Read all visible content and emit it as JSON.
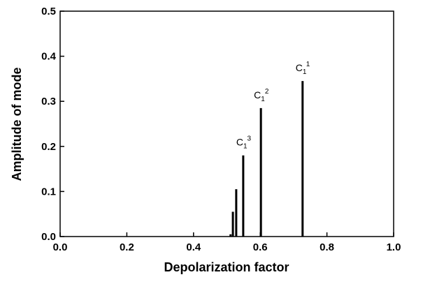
{
  "chart_data": {
    "type": "stem",
    "x_label": "Depolarization factor",
    "y_label": "Amplitude of mode",
    "x": [
      0.511,
      0.518,
      0.528,
      0.549,
      0.602,
      0.727
    ],
    "values": [
      0.005,
      0.055,
      0.105,
      0.18,
      0.285,
      0.345
    ],
    "point_labels": [
      null,
      null,
      null,
      {
        "base": "C",
        "sub": "1",
        "sup": "3"
      },
      {
        "base": "C",
        "sub": "1",
        "sup": "2"
      },
      {
        "base": "C",
        "sub": "1",
        "sup": "1"
      }
    ],
    "color": "#000000",
    "xlim": [
      0,
      1
    ],
    "xticks": [
      {
        "value": 0,
        "label": "0.0"
      },
      0.2,
      0.4,
      0.6,
      0.8,
      {
        "value": 1,
        "label": "1.0"
      }
    ],
    "ylim": [
      0,
      0.5
    ],
    "yticks": [
      {
        "value": 0,
        "label": "0.0"
      },
      0.1,
      0.2,
      0.3,
      0.4,
      0.5
    ]
  }
}
